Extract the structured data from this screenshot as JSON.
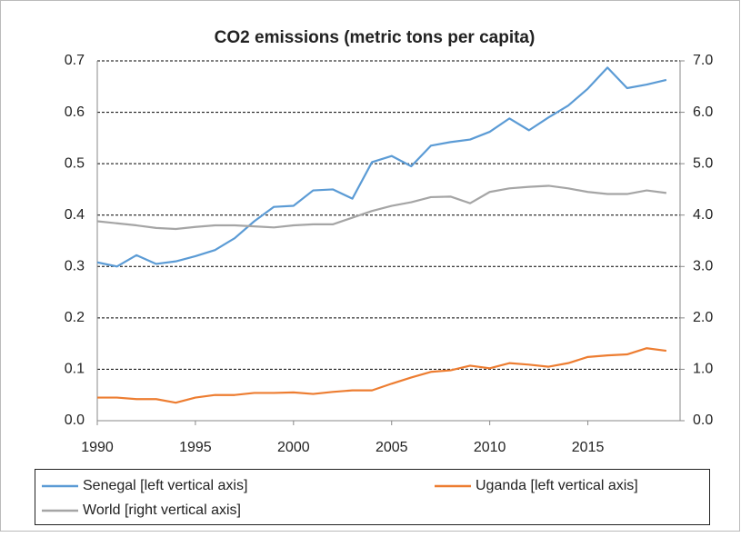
{
  "chart_data": {
    "type": "line",
    "title": "CO2 emissions (metric tons per capita)",
    "x": [
      1990,
      1991,
      1992,
      1993,
      1994,
      1995,
      1996,
      1997,
      1998,
      1999,
      2000,
      2001,
      2002,
      2003,
      2004,
      2005,
      2006,
      2007,
      2008,
      2009,
      2010,
      2011,
      2012,
      2013,
      2014,
      2015,
      2016,
      2017,
      2018,
      2019
    ],
    "xlim": [
      1990,
      2019.7
    ],
    "xticks": [
      1990,
      1995,
      2000,
      2005,
      2010,
      2015
    ],
    "ylim": [
      0,
      0.7
    ],
    "yticks": [
      {
        "value": 0,
        "label": "0.0"
      },
      0.1,
      0.2,
      0.3,
      0.4,
      0.5,
      0.6,
      0.7
    ],
    "y2lim": [
      0,
      7
    ],
    "y2ticks": [
      {
        "value": 0,
        "label": "0.0"
      },
      {
        "value": 1,
        "label": "1.0"
      },
      {
        "value": 2,
        "label": "2.0"
      },
      {
        "value": 3,
        "label": "3.0"
      },
      {
        "value": 4,
        "label": "4.0"
      },
      {
        "value": 5,
        "label": "5.0"
      },
      {
        "value": 6,
        "label": "6.0"
      },
      {
        "value": 7,
        "label": "7.0"
      }
    ],
    "grid": true,
    "legend": "bottom",
    "series": [
      {
        "name": "Senegal [left vertical axis]",
        "color": "#5b9bd5",
        "axis": "y",
        "values": [
          0.308,
          0.3,
          0.322,
          0.305,
          0.31,
          0.32,
          0.332,
          0.355,
          0.388,
          0.416,
          0.418,
          0.448,
          0.45,
          0.432,
          0.503,
          0.515,
          0.495,
          0.535,
          0.542,
          0.547,
          0.562,
          0.588,
          0.565,
          0.59,
          0.613,
          0.646,
          0.687,
          0.647,
          0.654,
          0.663
        ]
      },
      {
        "name": "Uganda [left vertical axis]",
        "color": "#ed7d31",
        "axis": "y",
        "values": [
          0.045,
          0.045,
          0.042,
          0.042,
          0.035,
          0.045,
          0.05,
          0.05,
          0.054,
          0.054,
          0.055,
          0.052,
          0.056,
          0.059,
          0.059,
          0.072,
          0.084,
          0.095,
          0.098,
          0.107,
          0.102,
          0.112,
          0.109,
          0.105,
          0.112,
          0.124,
          0.127,
          0.129,
          0.141,
          0.136
        ]
      },
      {
        "name": "World [right vertical axis]",
        "color": "#a5a5a5",
        "axis": "y2",
        "values": [
          3.88,
          3.84,
          3.8,
          3.75,
          3.73,
          3.77,
          3.8,
          3.8,
          3.78,
          3.76,
          3.8,
          3.82,
          3.82,
          3.95,
          4.08,
          4.18,
          4.25,
          4.35,
          4.36,
          4.23,
          4.45,
          4.52,
          4.55,
          4.57,
          4.52,
          4.45,
          4.41,
          4.41,
          4.48,
          4.43
        ]
      }
    ]
  }
}
